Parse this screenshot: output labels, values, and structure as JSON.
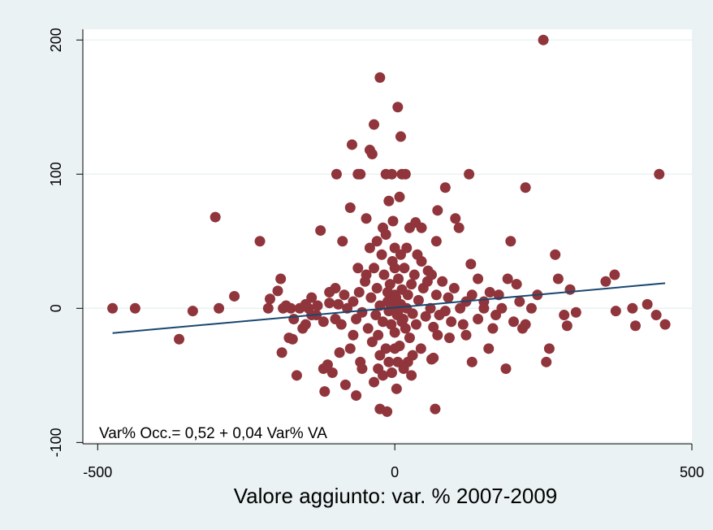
{
  "chart_data": {
    "type": "scatter",
    "x_label": "Valore aggiunto: var. % 2007-2009",
    "annotation": "Var% Occ.= 0,52 + 0,04 Var% VA",
    "xlim": [
      -525,
      500
    ],
    "ylim": [
      -101,
      208
    ],
    "xticks": [
      -500,
      0,
      500
    ],
    "yticks": [
      -100,
      0,
      100,
      200
    ],
    "grid": true,
    "fit": {
      "intercept": 0.52,
      "slope": 0.04,
      "x": [
        -475,
        455
      ],
      "color": "#1a476f"
    },
    "series": [
      {
        "color": "#90353b",
        "x": [
          -475,
          -437,
          -363,
          -340,
          -302,
          -296,
          -270,
          -227,
          -213,
          -210,
          -197,
          -192,
          -190,
          -188,
          -183,
          -178,
          -172,
          -165,
          -160,
          -155,
          -150,
          -145,
          -140,
          -132,
          -125,
          -120,
          -118,
          -113,
          -110,
          -105,
          -100,
          -98,
          -93,
          -88,
          -83,
          -75,
          -72,
          -65,
          -62,
          -58,
          -55,
          -48,
          -42,
          -38,
          -35,
          -28,
          -25,
          -25,
          -20,
          -15,
          -13,
          -10,
          -5,
          5,
          8,
          10,
          12,
          18,
          22,
          28,
          35,
          45,
          62,
          65,
          70,
          72,
          68,
          85,
          92,
          100,
          102,
          108,
          110,
          120,
          125,
          128,
          130,
          140,
          150,
          158,
          165,
          175,
          187,
          190,
          195,
          205,
          215,
          220,
          230,
          240,
          250,
          255,
          260,
          270,
          275,
          285,
          290,
          295,
          305,
          355,
          370,
          372,
          400,
          405,
          425,
          440,
          445,
          455,
          -80,
          -70,
          -65,
          -60,
          -55,
          -50,
          -45,
          -40,
          -38,
          -35,
          -32,
          -30,
          -28,
          -25,
          -22,
          -20,
          -18,
          -15,
          -12,
          -10,
          -8,
          -6,
          -4,
          -2,
          0,
          2,
          4,
          6,
          8,
          10,
          12,
          14,
          16,
          18,
          20,
          22,
          25,
          28,
          30,
          33,
          36,
          40,
          44,
          48,
          52,
          56,
          60,
          65,
          70,
          75,
          80,
          85,
          90,
          95,
          -90,
          -85,
          -95,
          -100,
          -110,
          -120,
          -130,
          -75,
          -58,
          -42,
          -30,
          -15,
          0,
          15,
          30,
          45,
          55,
          -5,
          5,
          -25,
          -48,
          38,
          -62,
          62,
          -70,
          72,
          -3,
          3,
          10,
          -10,
          20,
          -20,
          25,
          -35,
          0,
          -5,
          5,
          12,
          -12,
          0,
          0,
          150,
          140,
          130,
          120,
          115,
          160,
          170,
          180,
          200,
          210,
          220,
          -140,
          -150,
          -170,
          -175
        ],
        "y": [
          0,
          0,
          -23,
          -2,
          68,
          0,
          9,
          50,
          0,
          7,
          13,
          22,
          -33,
          0,
          2,
          -22,
          -23,
          -50,
          0,
          -15,
          -12,
          0,
          8,
          -5,
          58,
          -45,
          -62,
          -42,
          12,
          -48,
          15,
          100,
          -33,
          50,
          -57,
          75,
          122,
          -65,
          100,
          100,
          -45,
          67,
          118,
          115,
          137,
          -45,
          172,
          -75,
          60,
          100,
          -77,
          80,
          100,
          150,
          83,
          128,
          100,
          100,
          -40,
          -50,
          64,
          60,
          -38,
          -37,
          50,
          73,
          -75,
          90,
          -22,
          15,
          67,
          60,
          0,
          -20,
          100,
          33,
          -40,
          22,
          5,
          -30,
          -15,
          10,
          -45,
          22,
          50,
          18,
          -15,
          90,
          0,
          10,
          200,
          -40,
          -30,
          40,
          22,
          -5,
          -13,
          14,
          -3,
          20,
          25,
          -2,
          0,
          -13,
          3,
          -5,
          100,
          -12,
          0,
          5,
          -8,
          12,
          -3,
          20,
          -15,
          8,
          -25,
          30,
          -5,
          15,
          -20,
          2,
          40,
          -10,
          25,
          -30,
          5,
          -2,
          18,
          -12,
          35,
          0,
          -18,
          8,
          -5,
          22,
          -28,
          3,
          14,
          -8,
          30,
          -15,
          0,
          10,
          -22,
          18,
          -4,
          25,
          -12,
          6,
          -30,
          15,
          -6,
          28,
          0,
          -14,
          10,
          -5,
          20,
          -2,
          8,
          -10,
          -12,
          10,
          3,
          -8,
          4,
          -10,
          2,
          -30,
          -40,
          45,
          50,
          55,
          45,
          -45,
          -35,
          35,
          20,
          -48,
          -40,
          -35,
          25,
          40,
          30,
          25,
          -20,
          -20,
          65,
          -60,
          40,
          -40,
          45,
          -50,
          60,
          -55,
          10,
          5,
          -3,
          -10,
          12,
          30,
          -30,
          0,
          -8,
          10,
          5,
          -12,
          12,
          -5,
          0,
          -10,
          5,
          -12,
          -5,
          3,
          -8,
          0
        ]
      }
    ]
  }
}
